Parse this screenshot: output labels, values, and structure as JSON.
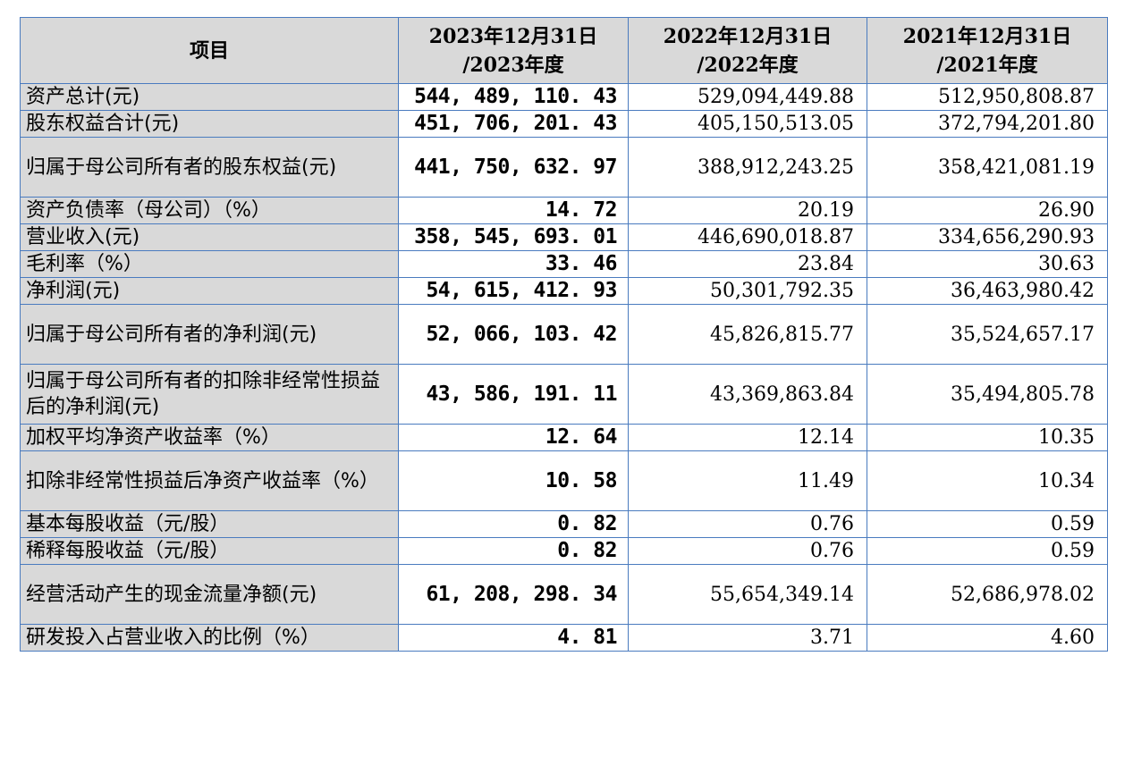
{
  "table": {
    "headers": [
      {
        "line1": "项目",
        "line2": ""
      },
      {
        "line1": "2023年12月31日",
        "line2": "/2023年度"
      },
      {
        "line1": "2022年12月31日",
        "line2": "/2022年度"
      },
      {
        "line1": "2021年12月31日",
        "line2": "/2021年度"
      }
    ],
    "rows": [
      {
        "label": "资产总计(元)",
        "v2023": "544, 489, 110. 43",
        "v2022": "529,094,449.88",
        "v2021": "512,950,808.87"
      },
      {
        "label": "股东权益合计(元)",
        "v2023": "451, 706, 201. 43",
        "v2022": "405,150,513.05",
        "v2021": "372,794,201.80"
      },
      {
        "label": "归属于母公司所有者的股东权益(元)",
        "v2023": "441, 750, 632. 97",
        "v2022": "388,912,243.25",
        "v2021": "358,421,081.19"
      },
      {
        "label": "资产负债率（母公司）（%）",
        "v2023": "14. 72",
        "v2022": "20.19",
        "v2021": "26.90"
      },
      {
        "label": "营业收入(元)",
        "v2023": "358, 545, 693. 01",
        "v2022": "446,690,018.87",
        "v2021": "334,656,290.93"
      },
      {
        "label": "毛利率（%）",
        "v2023": "33. 46",
        "v2022": "23.84",
        "v2021": "30.63"
      },
      {
        "label": "净利润(元)",
        "v2023": "54, 615, 412. 93",
        "v2022": "50,301,792.35",
        "v2021": "36,463,980.42"
      },
      {
        "label": "归属于母公司所有者的净利润(元)",
        "v2023": "52, 066, 103. 42",
        "v2022": "45,826,815.77",
        "v2021": "35,524,657.17"
      },
      {
        "label": "归属于母公司所有者的扣除非经常性损益后的净利润(元)",
        "v2023": "43, 586, 191. 11",
        "v2022": "43,369,863.84",
        "v2021": "35,494,805.78"
      },
      {
        "label": "加权平均净资产收益率（%）",
        "v2023": "12. 64",
        "v2022": "12.14",
        "v2021": "10.35"
      },
      {
        "label": "扣除非经常性损益后净资产收益率（%）",
        "v2023": "10. 58",
        "v2022": "11.49",
        "v2021": "10.34"
      },
      {
        "label": "基本每股收益（元/股）",
        "v2023": "0. 82",
        "v2022": "0.76",
        "v2021": "0.59"
      },
      {
        "label": "稀释每股收益（元/股）",
        "v2023": "0. 82",
        "v2022": "0.76",
        "v2021": "0.59"
      },
      {
        "label": "经营活动产生的现金流量净额(元)",
        "v2023": "61, 208, 298. 34",
        "v2022": "55,654,349.14",
        "v2021": "52,686,978.02"
      },
      {
        "label": "研发投入占营业收入的比例（%）",
        "v2023": "4. 81",
        "v2022": "3.71",
        "v2021": "4.60"
      }
    ]
  }
}
